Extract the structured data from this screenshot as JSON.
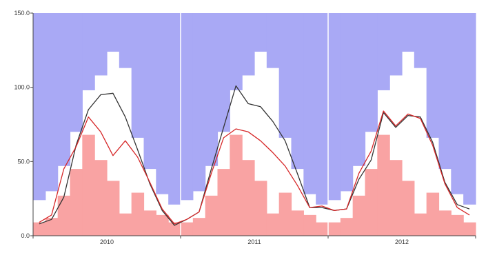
{
  "chart_data": {
    "type": "area",
    "x_start": "2010-01",
    "x_months": [
      "2010-01",
      "2010-02",
      "2010-03",
      "2010-04",
      "2010-05",
      "2010-06",
      "2010-07",
      "2010-08",
      "2010-09",
      "2010-10",
      "2010-11",
      "2010-12",
      "2011-01",
      "2011-02",
      "2011-03",
      "2011-04",
      "2011-05",
      "2011-06",
      "2011-07",
      "2011-08",
      "2011-09",
      "2011-10",
      "2011-11",
      "2011-12",
      "2012-01",
      "2012-02",
      "2012-03",
      "2012-04",
      "2012-05",
      "2012-06",
      "2012-07",
      "2012-08",
      "2012-09",
      "2012-10",
      "2012-11",
      "2012-12"
    ],
    "xlabels": [
      "2010",
      "2011",
      "2012"
    ],
    "yticks": [
      "0.0",
      "50.0",
      "100.0",
      "150.0"
    ],
    "ylim": [
      0,
      150
    ],
    "xlabel": "",
    "ylabel": "",
    "title": "",
    "grid": "vertical year separators",
    "series": [
      {
        "role": "envelope-upper",
        "color": "#a9a9f5",
        "values": [
          24,
          30,
          47,
          70,
          98,
          108,
          124,
          113,
          66,
          45,
          28,
          21,
          24,
          30,
          47,
          70,
          98,
          108,
          124,
          113,
          66,
          45,
          28,
          21,
          24,
          30,
          47,
          70,
          98,
          108,
          124,
          113,
          66,
          45,
          28,
          21
        ]
      },
      {
        "role": "envelope-lower",
        "color": "#f9a3a3",
        "values": [
          9,
          12,
          27,
          45,
          68,
          51,
          37,
          15,
          29,
          17,
          14,
          9,
          9,
          12,
          27,
          45,
          68,
          51,
          37,
          15,
          29,
          17,
          14,
          9,
          9,
          12,
          27,
          45,
          68,
          51,
          37,
          15,
          29,
          17,
          14,
          9
        ]
      },
      {
        "role": "line",
        "color": "#333333",
        "values": [
          8,
          11,
          26,
          61,
          85,
          95,
          96,
          80,
          58,
          35,
          17,
          7,
          11,
          16,
          45,
          73,
          101,
          89,
          87,
          77,
          64,
          42,
          19,
          19,
          17,
          18,
          38,
          51,
          83,
          73,
          81,
          80,
          63,
          36,
          21,
          18
        ]
      },
      {
        "role": "line",
        "color": "#d62728",
        "values": [
          9,
          14,
          45,
          60,
          80,
          70,
          54,
          64,
          53,
          36,
          18,
          8,
          11,
          16,
          42,
          66,
          72,
          70,
          64,
          56,
          47,
          34,
          19,
          20,
          17,
          18,
          42,
          57,
          84,
          74,
          82,
          79,
          61,
          35,
          19,
          14
        ]
      }
    ]
  }
}
